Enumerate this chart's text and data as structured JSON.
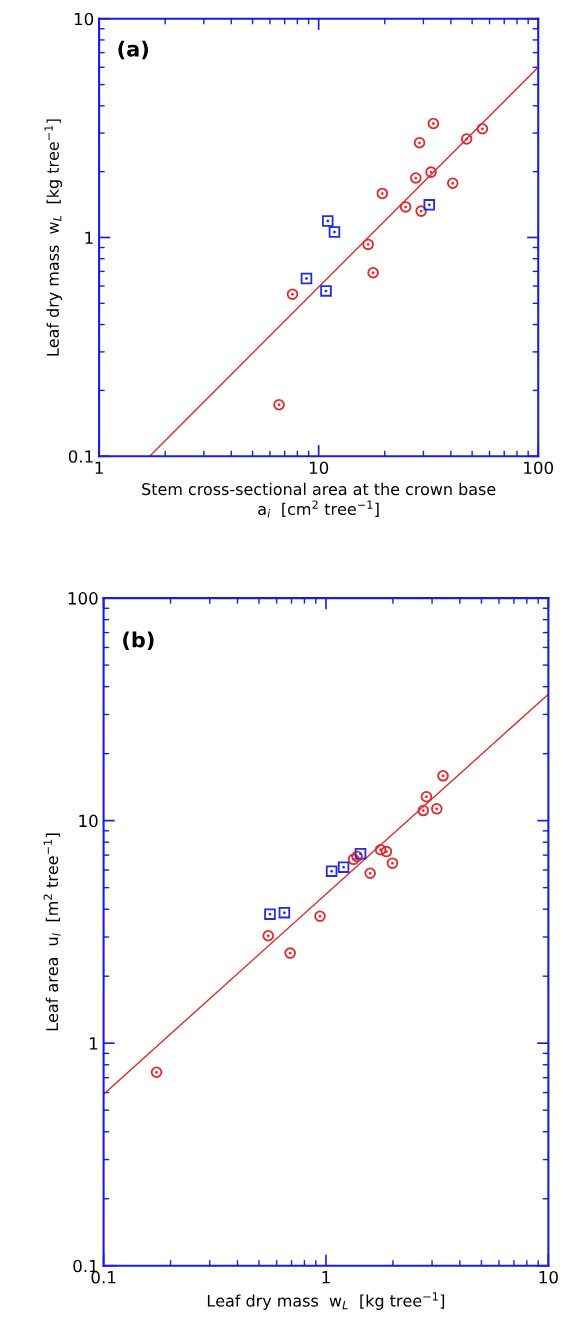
{
  "chart_data": [
    {
      "type": "scatter",
      "xlabel": "Stem cross-sectional area at the crown base\na$_{i}$  [cm$^{2}$ tree$^{−1}$]",
      "ylabel": "Leaf dry mass  w$_{L}$  [kg tree$^{−1}$]",
      "annotations": [
        "(a)"
      ],
      "log": "xy",
      "xlim": [
        1,
        100
      ],
      "ylim": [
        0.1,
        10
      ],
      "xticks": [
        1,
        10,
        100
      ],
      "yticks": [
        0.1,
        1,
        10
      ],
      "grid": false,
      "legend": false,
      "series": [
        {
          "color": "#e8262a",
          "marker": "circle",
          "x": [
            6.6,
            7.6,
            16.8,
            17.7,
            19.5,
            24.9,
            27.7,
            28.8,
            29.3,
            32.5,
            33.3,
            40.8,
            47.2,
            55.7
          ],
          "values": [
            0.172,
            0.55,
            0.93,
            0.69,
            1.59,
            1.38,
            1.87,
            2.71,
            1.32,
            1.99,
            3.32,
            1.77,
            2.82,
            3.14
          ]
        },
        {
          "color": "#1f2ee0",
          "marker": "square",
          "x": [
            8.8,
            10.8,
            11.0,
            11.8,
            31.9
          ],
          "values": [
            0.65,
            0.57,
            1.19,
            1.06,
            1.41
          ]
        },
        {
          "type": "line",
          "color": "#e8262a",
          "marker": "none",
          "line_style": "solid",
          "x": [
            1.7,
            100
          ],
          "values": [
            0.1,
            6.0
          ]
        }
      ]
    },
    {
      "type": "scatter",
      "xlabel": "Leaf dry mass  w$_{L}$  [kg tree$^{−1}$]",
      "ylabel": "Leaf area  u$_{l}$  [m$^{2}$ tree$^{−1}$]",
      "annotations": [
        "(b)"
      ],
      "log": "xy",
      "xlim": [
        0.1,
        10
      ],
      "ylim": [
        0.1,
        100
      ],
      "xticks": [
        0.1,
        1,
        10
      ],
      "yticks": [
        0.1,
        1,
        10,
        100
      ],
      "grid": false,
      "legend": false,
      "series": [
        {
          "color": "#e8262a",
          "marker": "circle",
          "x": [
            0.173,
            0.55,
            0.69,
            0.94,
            1.33,
            1.38,
            1.58,
            1.76,
            1.87,
            1.99,
            2.74,
            2.83,
            3.15,
            3.36
          ],
          "values": [
            0.74,
            3.04,
            2.54,
            3.72,
            6.7,
            6.9,
            5.8,
            7.4,
            7.26,
            6.44,
            11.1,
            12.8,
            11.3,
            15.9
          ]
        },
        {
          "color": "#1f2ee0",
          "marker": "square",
          "x": [
            0.56,
            0.65,
            1.06,
            1.2,
            1.43
          ],
          "values": [
            3.8,
            3.86,
            5.93,
            6.18,
            7.1
          ]
        },
        {
          "type": "line",
          "color": "#e8262a",
          "marker": "none",
          "line_style": "solid",
          "x": [
            0.1,
            10
          ],
          "values": [
            0.59,
            37
          ]
        }
      ]
    }
  ]
}
